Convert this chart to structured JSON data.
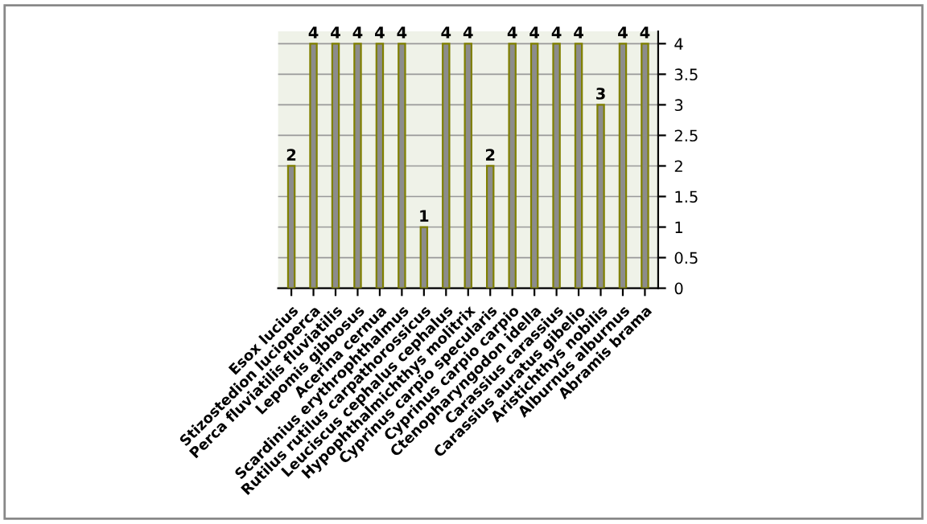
{
  "chart_data": {
    "type": "bar",
    "categories": [
      "Esox lucius",
      "Stizostedion lucioperca",
      "Perca fluviatilis fluviatilis",
      "Lepomis gibbosus",
      "Acerina cernua",
      "Scardinius erythrophthalmus",
      "Rutilus rutilus carpathorossicus",
      "Leuciscus cephalus cephalus",
      "Hypophthalmichthys molitrix",
      "Cyprinus carpio specularis",
      "Cyprinus carpio carpio",
      "Ctenopharyngodon idella",
      "Carassius carassius",
      "Carassius auratus gibelio",
      "Aristichthys nobilis",
      "Alburnus alburnus",
      "Abramis brama"
    ],
    "values": [
      2,
      4,
      4,
      4,
      4,
      4,
      1,
      4,
      4,
      2,
      4,
      4,
      4,
      4,
      3,
      4,
      4
    ],
    "color": "#8c8c8c",
    "ylim": [
      0,
      4.2
    ],
    "yticks": [
      0,
      0.5,
      1,
      1.5,
      2,
      2.5,
      3,
      3.5,
      4
    ],
    "grid": "y",
    "data_labels": true,
    "legend": false
  }
}
